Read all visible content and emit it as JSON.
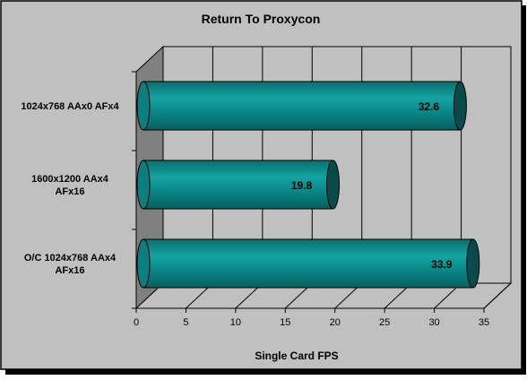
{
  "chart_data": {
    "type": "bar",
    "orientation": "horizontal",
    "style": "3d-cylinder",
    "title": "Return To Proxycon",
    "xlabel": "Single Card FPS",
    "ylabel": "",
    "categories": [
      [
        "1024x768  AAx0  AFx4"
      ],
      [
        "1600x1200  AAx4",
        "AFx16"
      ],
      [
        "O/C 1024x768  AAx4",
        "AFx16"
      ]
    ],
    "values": [
      32.6,
      19.8,
      33.9
    ],
    "value_labels": [
      "32.6",
      "19.8",
      "33.9"
    ],
    "xlim": [
      0,
      35
    ],
    "x_ticks": [
      0,
      5,
      10,
      15,
      20,
      25,
      30,
      35
    ],
    "x_tick_labels": [
      "0",
      "5",
      "10",
      "15",
      "20",
      "25",
      "30",
      "35"
    ],
    "grid": true,
    "legend": "none",
    "colors": {
      "bar": "#008080",
      "bar_end": "#0a4a4a",
      "plot_back": "#c0c0c0",
      "side_wall": "#808080",
      "floor": "#c0c0c0",
      "background": "#c0c0c0",
      "grid": "#000000"
    }
  }
}
